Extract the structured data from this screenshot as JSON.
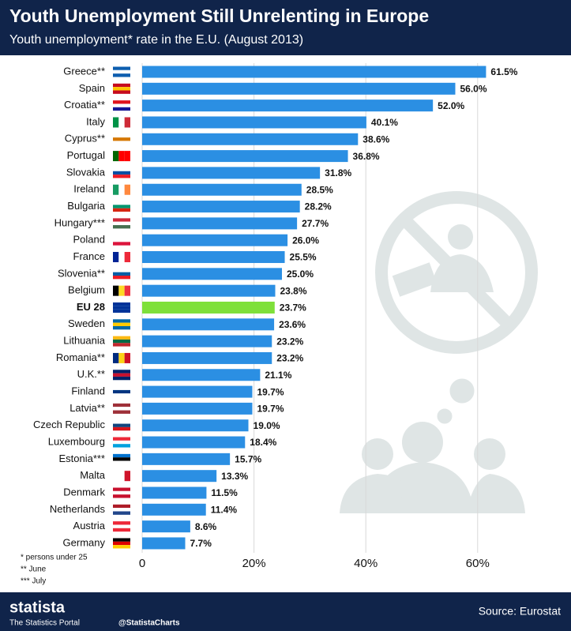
{
  "chart_data": {
    "type": "hbar",
    "title": "Youth Unemployment Still Unrelenting in Europe",
    "subtitle": "Youth unemployment* rate in the E.U. (August 2013)",
    "categories": [
      "Greece**",
      "Spain",
      "Croatia**",
      "Italy",
      "Cyprus**",
      "Portugal",
      "Slovakia",
      "Ireland",
      "Bulgaria",
      "Hungary***",
      "Poland",
      "France",
      "Slovenia**",
      "Belgium",
      "EU 28",
      "Sweden",
      "Lithuania",
      "Romania**",
      "U.K.**",
      "Finland",
      "Latvia**",
      "Czech Republic",
      "Luxembourg",
      "Estonia***",
      "Malta",
      "Denmark",
      "Netherlands",
      "Austria",
      "Germany"
    ],
    "values": [
      61.5,
      56.0,
      52.0,
      40.1,
      38.6,
      36.8,
      31.8,
      28.5,
      28.2,
      27.7,
      26.0,
      25.5,
      25.0,
      23.8,
      23.7,
      23.6,
      23.2,
      23.2,
      21.1,
      19.7,
      19.7,
      19.0,
      18.4,
      15.7,
      13.3,
      11.5,
      11.4,
      8.6,
      7.7
    ],
    "value_labels": [
      "61.5%",
      "56.0%",
      "52.0%",
      "40.1%",
      "38.6%",
      "36.8%",
      "31.8%",
      "28.5%",
      "28.2%",
      "27.7%",
      "26.0%",
      "25.5%",
      "25.0%",
      "23.8%",
      "23.7%",
      "23.6%",
      "23.2%",
      "23.2%",
      "21.1%",
      "19.7%",
      "19.7%",
      "19.0%",
      "18.4%",
      "15.7%",
      "13.3%",
      "11.5%",
      "11.4%",
      "8.6%",
      "7.7%"
    ],
    "colors": [
      "#2b8fe3",
      "#2b8fe3",
      "#2b8fe3",
      "#2b8fe3",
      "#2b8fe3",
      "#2b8fe3",
      "#2b8fe3",
      "#2b8fe3",
      "#2b8fe3",
      "#2b8fe3",
      "#2b8fe3",
      "#2b8fe3",
      "#2b8fe3",
      "#2b8fe3",
      "#7ee03a",
      "#2b8fe3",
      "#2b8fe3",
      "#2b8fe3",
      "#2b8fe3",
      "#2b8fe3",
      "#2b8fe3",
      "#2b8fe3",
      "#2b8fe3",
      "#2b8fe3",
      "#2b8fe3",
      "#2b8fe3",
      "#2b8fe3",
      "#2b8fe3",
      "#2b8fe3"
    ],
    "xlim": [
      0,
      64
    ],
    "xticks": [
      0,
      {
        "value": 20,
        "label": "20%"
      },
      {
        "value": 40,
        "label": "40%"
      },
      {
        "value": 60,
        "label": "60%"
      }
    ],
    "grid": true,
    "notes": [
      "* persons under 25",
      "** June",
      "*** July"
    ]
  },
  "footer": {
    "brand": "statista",
    "tagline": "The Statistics Portal",
    "handle": "@StatistaCharts",
    "source": "Source: Eurostat"
  }
}
